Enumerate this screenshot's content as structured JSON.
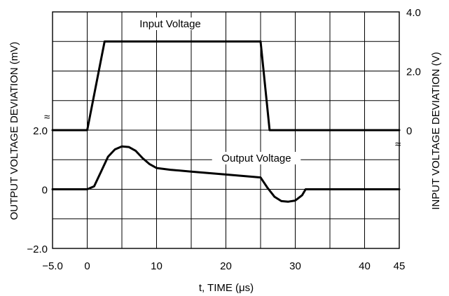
{
  "chart_data": {
    "type": "line",
    "title": "",
    "xlabel": "t, TIME (μs)",
    "ylabel_left": "OUTPUT VOLTAGE DEVIATION (mV)",
    "ylabel_right": "INPUT VOLTAGE DEVIATION (V)",
    "xlim": [
      -5.0,
      45
    ],
    "x_tick_labels": [
      "−5.0",
      "0",
      "10",
      "20",
      "30",
      "40",
      "45"
    ],
    "left_tick_labels": [
      "2.0",
      "0",
      "−2.0"
    ],
    "right_tick_labels": [
      "4.0",
      "2.0",
      "0"
    ],
    "axis_break_symbol": "≈",
    "grid": true,
    "series": [
      {
        "name": "Input Voltage",
        "axis": "right",
        "unit": "V",
        "points": [
          [
            -5.0,
            0
          ],
          [
            0,
            0
          ],
          [
            2.5,
            3.0
          ],
          [
            25,
            3.0
          ],
          [
            26.3,
            0
          ],
          [
            45,
            0
          ]
        ]
      },
      {
        "name": "Output Voltage",
        "axis": "left",
        "unit": "mV",
        "points": [
          [
            -5.0,
            0
          ],
          [
            0,
            0
          ],
          [
            1,
            0.1
          ],
          [
            2,
            0.6
          ],
          [
            3,
            1.1
          ],
          [
            4,
            1.35
          ],
          [
            5,
            1.45
          ],
          [
            6,
            1.43
          ],
          [
            7,
            1.3
          ],
          [
            8,
            1.05
          ],
          [
            9,
            0.85
          ],
          [
            10,
            0.72
          ],
          [
            12,
            0.66
          ],
          [
            15,
            0.6
          ],
          [
            20,
            0.5
          ],
          [
            24,
            0.42
          ],
          [
            25,
            0.4
          ],
          [
            26,
            0.05
          ],
          [
            27,
            -0.25
          ],
          [
            28,
            -0.4
          ],
          [
            29,
            -0.42
          ],
          [
            30,
            -0.38
          ],
          [
            31,
            -0.2
          ],
          [
            31.5,
            0
          ],
          [
            45,
            0
          ]
        ]
      }
    ],
    "annotations": [
      "Input Voltage",
      "Output Voltage"
    ]
  }
}
